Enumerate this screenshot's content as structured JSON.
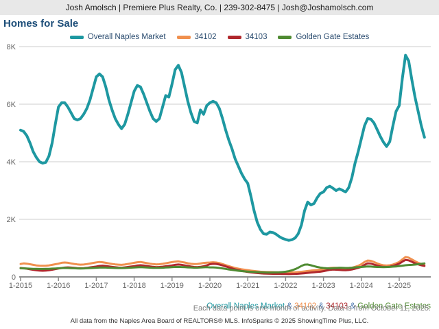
{
  "header": {
    "contact_line": "Josh Amolsch | Premiere Plus Realty, Co. | 239-302-8475 | Josh@Joshamolsch.com"
  },
  "title": "Homes for Sale",
  "legend": {
    "items": [
      {
        "label": "Overall Naples Market",
        "color": "#1e98a1"
      },
      {
        "label": "34102",
        "color": "#f0904e"
      },
      {
        "label": "34103",
        "color": "#b0282d"
      },
      {
        "label": "Golden Gate Estates",
        "color": "#4f8b32"
      }
    ]
  },
  "chart_data": {
    "type": "line",
    "title": "Homes for Sale",
    "xlabel": "",
    "ylabel": "",
    "x_start": "1-2015",
    "x_end": "9-2025",
    "months_per_point": 1,
    "x_tick_labels": [
      "1-2015",
      "1-2016",
      "1-2017",
      "1-2018",
      "1-2019",
      "1-2020",
      "1-2021",
      "1-2022",
      "1-2023",
      "1-2024",
      "1-2025"
    ],
    "x_tick_month_indices": [
      0,
      12,
      24,
      36,
      48,
      60,
      72,
      84,
      96,
      108,
      120
    ],
    "ylim": [
      0,
      8000
    ],
    "y_ticks": [
      0,
      2000,
      4000,
      6000,
      8000
    ],
    "y_tick_labels": [
      "0",
      "2K",
      "4K",
      "6K",
      "8K"
    ],
    "grid": "horizontal",
    "legend_position": "top-center",
    "colors": {
      "gridline": "#cccccc",
      "axis": "#8c8c8c",
      "tick_text": "#666666"
    },
    "series": [
      {
        "name": "Overall Naples Market",
        "color": "#1e98a1",
        "stroke_width": 4,
        "values": [
          5100,
          5050,
          4900,
          4650,
          4350,
          4150,
          4000,
          3950,
          3980,
          4200,
          4650,
          5300,
          5900,
          6050,
          6050,
          5900,
          5700,
          5500,
          5450,
          5500,
          5650,
          5850,
          6150,
          6550,
          6950,
          7050,
          6950,
          6600,
          6150,
          5800,
          5500,
          5300,
          5150,
          5300,
          5650,
          6050,
          6450,
          6650,
          6600,
          6350,
          6050,
          5750,
          5500,
          5400,
          5500,
          5900,
          6300,
          6250,
          6700,
          7200,
          7350,
          7100,
          6600,
          6100,
          5700,
          5400,
          5350,
          5800,
          5650,
          5950,
          6050,
          6100,
          6050,
          5850,
          5500,
          5100,
          4750,
          4450,
          4100,
          3850,
          3600,
          3400,
          3250,
          2800,
          2300,
          1900,
          1650,
          1500,
          1480,
          1560,
          1540,
          1480,
          1400,
          1340,
          1300,
          1270,
          1290,
          1350,
          1500,
          1800,
          2300,
          2600,
          2500,
          2550,
          2750,
          2900,
          2950,
          3100,
          3150,
          3080,
          3000,
          3060,
          3010,
          2950,
          3100,
          3450,
          3950,
          4350,
          4800,
          5250,
          5500,
          5480,
          5350,
          5120,
          4880,
          4680,
          4530,
          4700,
          5250,
          5750,
          5950,
          6900,
          7700,
          7500,
          6850,
          6250,
          5750,
          5250,
          4850
        ]
      },
      {
        "name": "34102",
        "color": "#f0904e",
        "stroke_width": 3,
        "values": [
          450,
          470,
          460,
          440,
          420,
          400,
          390,
          385,
          390,
          400,
          420,
          440,
          460,
          490,
          500,
          490,
          470,
          450,
          435,
          425,
          430,
          445,
          465,
          485,
          505,
          520,
          510,
          490,
          470,
          450,
          435,
          425,
          420,
          430,
          450,
          470,
          490,
          510,
          520,
          500,
          480,
          460,
          445,
          435,
          440,
          455,
          475,
          495,
          515,
          530,
          540,
          520,
          500,
          475,
          455,
          445,
          450,
          465,
          485,
          495,
          500,
          510,
          500,
          480,
          445,
          410,
          375,
          340,
          310,
          285,
          265,
          250,
          235,
          220,
          205,
          192,
          182,
          175,
          170,
          168,
          166,
          163,
          160,
          158,
          155,
          152,
          155,
          160,
          168,
          178,
          190,
          205,
          218,
          228,
          238,
          250,
          265,
          290,
          310,
          320,
          315,
          305,
          295,
          290,
          300,
          320,
          350,
          385,
          440,
          520,
          570,
          560,
          520,
          470,
          430,
          405,
          395,
          405,
          430,
          470,
          520,
          610,
          690,
          670,
          610,
          545,
          490,
          450,
          420
        ]
      },
      {
        "name": "34103",
        "color": "#b0282d",
        "stroke_width": 3,
        "values": [
          310,
          300,
          285,
          265,
          245,
          230,
          220,
          215,
          220,
          230,
          250,
          270,
          290,
          310,
          325,
          330,
          325,
          315,
          305,
          300,
          305,
          315,
          330,
          345,
          360,
          380,
          390,
          380,
          365,
          350,
          335,
          325,
          320,
          330,
          345,
          360,
          375,
          395,
          405,
          395,
          380,
          365,
          350,
          340,
          345,
          355,
          370,
          385,
          400,
          420,
          430,
          420,
          400,
          380,
          360,
          345,
          340,
          350,
          370,
          400,
          440,
          455,
          450,
          430,
          400,
          365,
          330,
          295,
          262,
          235,
          210,
          190,
          172,
          158,
          145,
          133,
          124,
          117,
          112,
          110,
          108,
          106,
          104,
          102,
          100,
          98,
          100,
          104,
          110,
          118,
          128,
          140,
          152,
          162,
          172,
          182,
          200,
          225,
          245,
          255,
          250,
          242,
          235,
          230,
          240,
          258,
          285,
          315,
          350,
          420,
          470,
          465,
          430,
          395,
          365,
          350,
          345,
          355,
          380,
          420,
          460,
          530,
          590,
          575,
          525,
          475,
          435,
          405,
          380
        ]
      },
      {
        "name": "Golden Gate Estates",
        "color": "#4f8b32",
        "stroke_width": 3,
        "values": [
          300,
          295,
          290,
          285,
          280,
          278,
          275,
          275,
          278,
          282,
          288,
          294,
          300,
          308,
          312,
          310,
          305,
          300,
          296,
          294,
          296,
          300,
          306,
          312,
          318,
          325,
          328,
          325,
          320,
          314,
          310,
          307,
          306,
          310,
          316,
          322,
          328,
          334,
          338,
          334,
          328,
          322,
          317,
          314,
          315,
          320,
          326,
          332,
          338,
          345,
          348,
          344,
          338,
          331,
          326,
          322,
          322,
          327,
          333,
          338,
          330,
          330,
          325,
          312,
          296,
          278,
          260,
          244,
          228,
          214,
          202,
          192,
          185,
          178,
          172,
          166,
          162,
          158,
          155,
          153,
          154,
          156,
          160,
          168,
          180,
          200,
          230,
          270,
          320,
          380,
          425,
          430,
          405,
          375,
          345,
          325,
          310,
          300,
          295,
          300,
          310,
          318,
          315,
          310,
          312,
          320,
          330,
          340,
          345,
          355,
          362,
          360,
          352,
          346,
          342,
          340,
          342,
          348,
          356,
          365,
          375,
          390,
          405,
          415,
          420,
          428,
          440,
          455,
          470
        ]
      }
    ]
  },
  "footer": {
    "series_line": {
      "sep": " & ",
      "sep_color": "#4a77b0",
      "items": [
        {
          "label": "Overall Naples Market",
          "color": "#1e98a1"
        },
        {
          "label": "34102",
          "color": "#f0904e"
        },
        {
          "label": "34103",
          "color": "#b0282d"
        },
        {
          "label": "Golden Gate Estates",
          "color": "#4f8b32"
        }
      ]
    },
    "note": "Each data point is one month of activity. Data is from October 11, 2025.",
    "attribution": "All data from the Naples Area Board of REALTORS® MLS. InfoSparks © 2025 ShowingTime Plus, LLC."
  }
}
